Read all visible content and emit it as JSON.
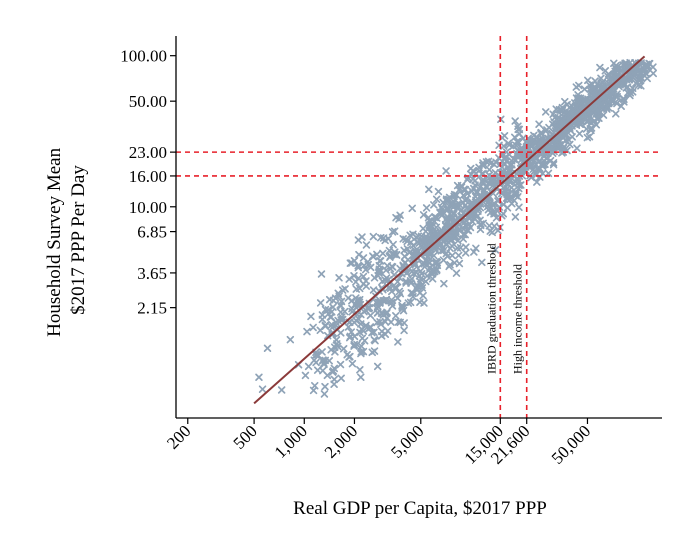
{
  "chart_data": {
    "type": "scatter",
    "title": "",
    "xlabel": "Real GDP per Capita, $2017 PPP",
    "ylabel_lines": [
      "Household Survey Mean",
      "$2017 PPP Per Day"
    ],
    "x_scale": "log",
    "y_scale": "log",
    "xlim": [
      170,
      140000
    ],
    "ylim": [
      0.4,
      135
    ],
    "x_ticks": [
      200,
      500,
      1000,
      2000,
      5000,
      15000,
      21600,
      50000
    ],
    "x_tick_labels": [
      "200",
      "500",
      "1,000",
      "2,000",
      "5,000",
      "15,000",
      "21,600",
      "50,000"
    ],
    "y_ticks": [
      2.15,
      3.65,
      6.85,
      10,
      16,
      23,
      50,
      100
    ],
    "y_tick_labels": [
      "2.15",
      "3.65",
      "6.85",
      "10.00",
      "16.00",
      "23.00",
      "50.00",
      "100.00"
    ],
    "grid": false,
    "legend": "none",
    "marker": "x",
    "marker_color": "#8fa3b7",
    "fit_line": {
      "color": "#8b3a3a",
      "points": [
        [
          500,
          0.5
        ],
        [
          110000,
          99
        ]
      ]
    },
    "reference_lines": [
      {
        "orientation": "vertical",
        "value": 15000,
        "label": "IBRD graduation threshold",
        "color": "#e8202a"
      },
      {
        "orientation": "vertical",
        "value": 21600,
        "label": "High income threshold",
        "color": "#e8202a"
      },
      {
        "orientation": "horizontal",
        "value": 23,
        "label": "",
        "color": "#e8202a"
      },
      {
        "orientation": "horizontal",
        "value": 16,
        "label": "",
        "color": "#e8202a"
      }
    ],
    "series": [
      {
        "values_description": "approx. 1500 country-year survey observations following y ≈ 0.000464 · x^1.05 with noise",
        "x_range": [
          480,
          125000
        ],
        "y_range": [
          0.55,
          90
        ],
        "count": 1500
      }
    ]
  }
}
